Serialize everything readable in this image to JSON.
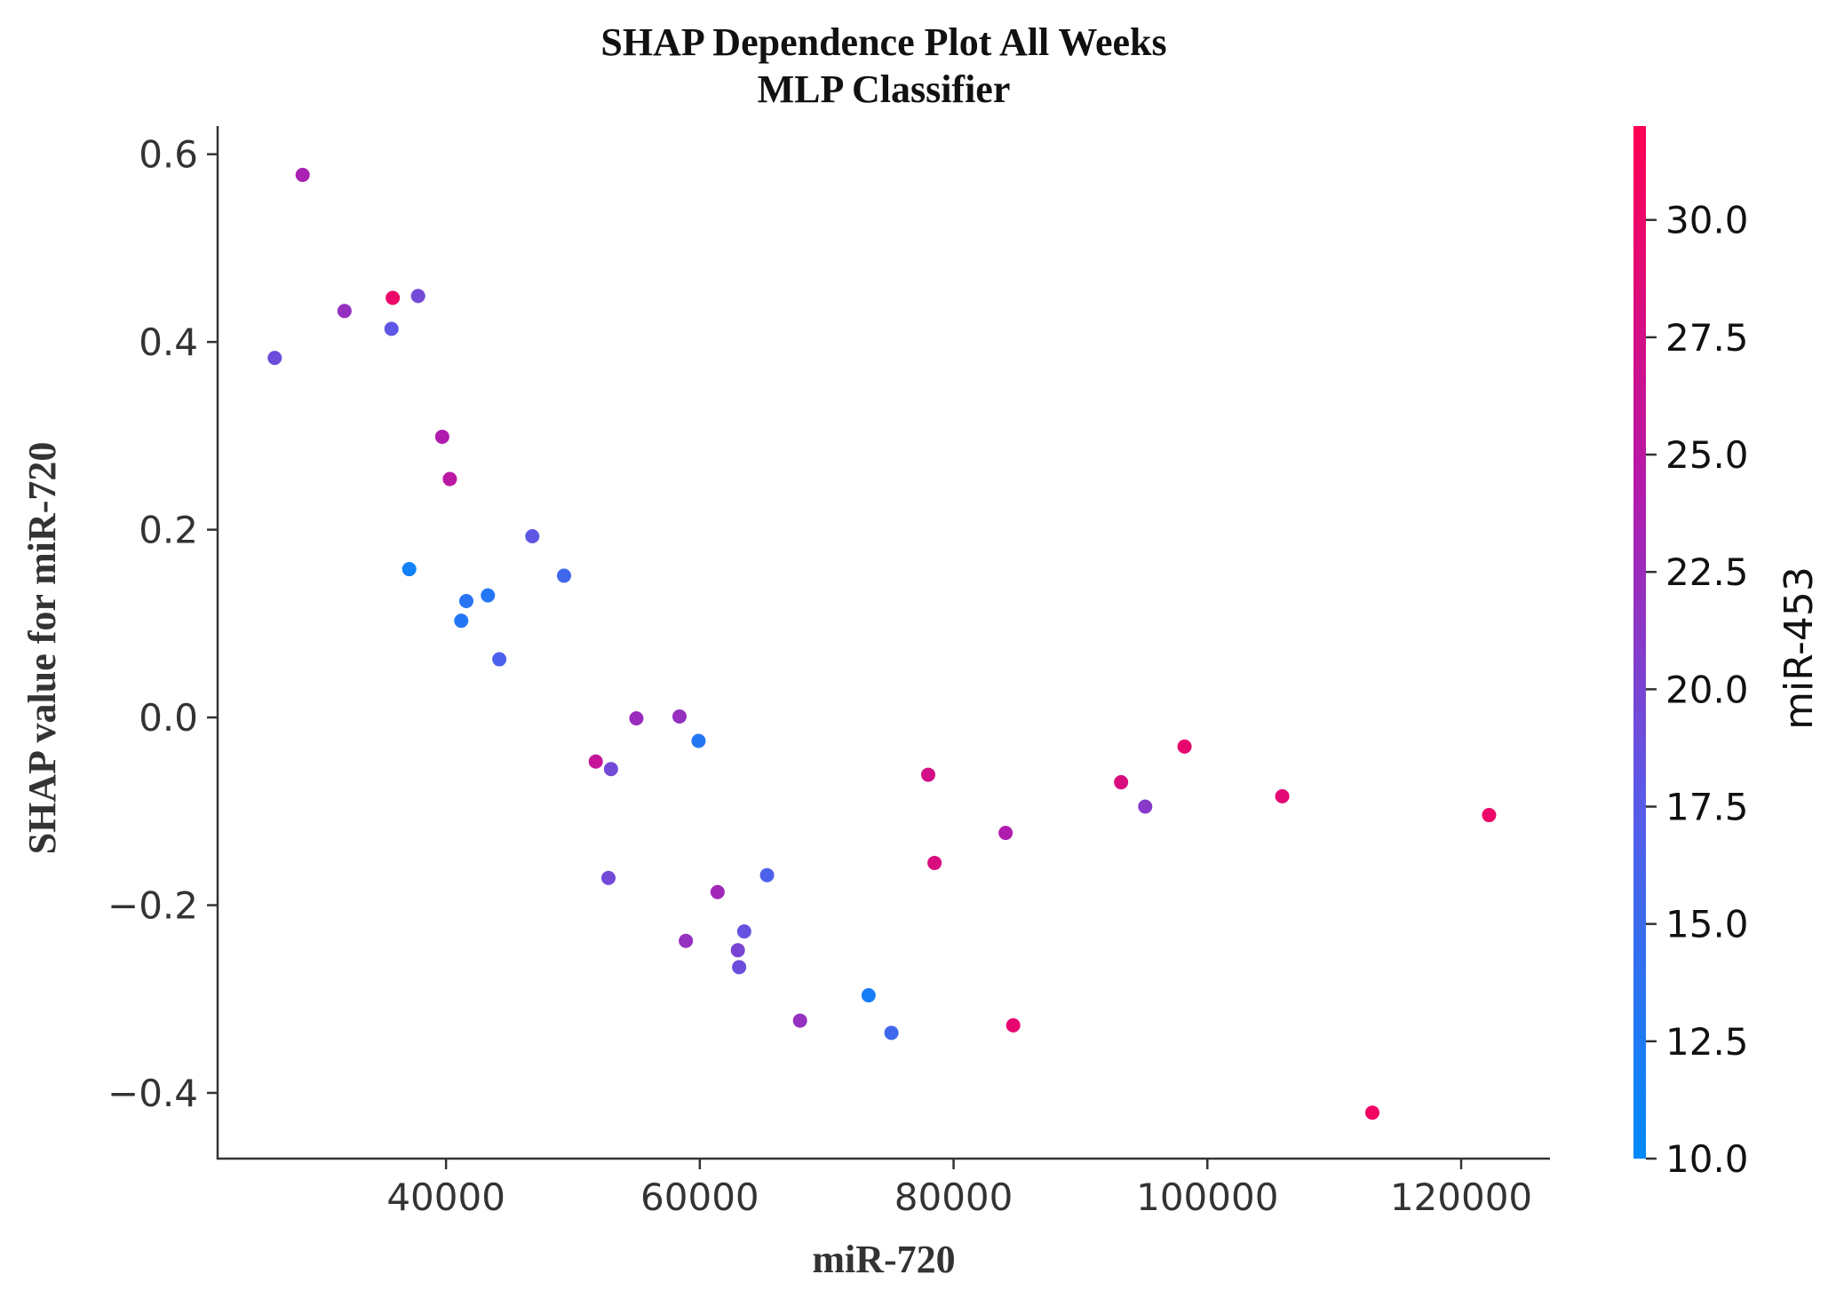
{
  "chart_data": {
    "type": "scatter",
    "title": "SHAP Dependence Plot All Weeks",
    "subtitle": "MLP Classifier",
    "xlabel": "miR-720",
    "ylabel": "SHAP value for miR-720",
    "xlim": [
      22000,
      127000
    ],
    "ylim": [
      -0.47,
      0.63
    ],
    "x_ticks": [
      40000,
      60000,
      80000,
      100000,
      120000
    ],
    "x_tick_labels": [
      "40000",
      "60000",
      "80000",
      "100000",
      "120000"
    ],
    "y_ticks": [
      0.6,
      0.4,
      0.2,
      0.0,
      -0.2,
      -0.4
    ],
    "y_tick_labels": [
      "0.6",
      "0.4",
      "0.2",
      "0.0",
      "−0.2",
      "−0.4"
    ],
    "colorbar": {
      "label": "miR-453",
      "range": [
        10.0,
        32.0
      ],
      "ticks": [
        10.0,
        12.5,
        15.0,
        17.5,
        20.0,
        22.5,
        25.0,
        27.5,
        30.0
      ],
      "tick_labels": [
        "10.0",
        "12.5",
        "15.0",
        "17.5",
        "20.0",
        "22.5",
        "25.0",
        "27.5",
        "30.0"
      ],
      "color_low": "#008afb",
      "color_high": "#ff0052"
    },
    "grid": false,
    "points": [
      {
        "x": 26500,
        "y": 0.383,
        "c": 19.0
      },
      {
        "x": 28700,
        "y": 0.578,
        "c": 23.5
      },
      {
        "x": 32000,
        "y": 0.433,
        "c": 22.0
      },
      {
        "x": 35700,
        "y": 0.414,
        "c": 18.0
      },
      {
        "x": 35800,
        "y": 0.447,
        "c": 30.0
      },
      {
        "x": 37800,
        "y": 0.449,
        "c": 19.5
      },
      {
        "x": 39700,
        "y": 0.299,
        "c": 24.0
      },
      {
        "x": 40300,
        "y": 0.254,
        "c": 25.0
      },
      {
        "x": 37100,
        "y": 0.158,
        "c": 11.5
      },
      {
        "x": 41200,
        "y": 0.103,
        "c": 13.0
      },
      {
        "x": 41600,
        "y": 0.124,
        "c": 13.5
      },
      {
        "x": 43300,
        "y": 0.13,
        "c": 13.0
      },
      {
        "x": 44200,
        "y": 0.062,
        "c": 16.5
      },
      {
        "x": 46800,
        "y": 0.193,
        "c": 18.0
      },
      {
        "x": 49300,
        "y": 0.151,
        "c": 15.5
      },
      {
        "x": 51800,
        "y": -0.047,
        "c": 26.0
      },
      {
        "x": 52800,
        "y": -0.171,
        "c": 19.5
      },
      {
        "x": 53000,
        "y": -0.055,
        "c": 19.5
      },
      {
        "x": 55000,
        "y": -0.001,
        "c": 22.5
      },
      {
        "x": 58400,
        "y": 0.001,
        "c": 22.0
      },
      {
        "x": 58900,
        "y": -0.238,
        "c": 22.0
      },
      {
        "x": 59900,
        "y": -0.025,
        "c": 13.0
      },
      {
        "x": 61400,
        "y": -0.186,
        "c": 23.0
      },
      {
        "x": 63000,
        "y": -0.248,
        "c": 20.0
      },
      {
        "x": 63100,
        "y": -0.266,
        "c": 19.0
      },
      {
        "x": 63500,
        "y": -0.228,
        "c": 18.5
      },
      {
        "x": 65300,
        "y": -0.168,
        "c": 16.5
      },
      {
        "x": 67900,
        "y": -0.323,
        "c": 22.0
      },
      {
        "x": 73300,
        "y": -0.296,
        "c": 12.0
      },
      {
        "x": 75100,
        "y": -0.336,
        "c": 15.5
      },
      {
        "x": 78000,
        "y": -0.061,
        "c": 27.5
      },
      {
        "x": 78500,
        "y": -0.155,
        "c": 28.0
      },
      {
        "x": 84100,
        "y": -0.123,
        "c": 24.0
      },
      {
        "x": 84700,
        "y": -0.328,
        "c": 29.5
      },
      {
        "x": 93200,
        "y": -0.069,
        "c": 28.0
      },
      {
        "x": 95100,
        "y": -0.095,
        "c": 21.0
      },
      {
        "x": 98200,
        "y": -0.031,
        "c": 29.5
      },
      {
        "x": 105900,
        "y": -0.084,
        "c": 29.0
      },
      {
        "x": 113000,
        "y": -0.421,
        "c": 30.5
      },
      {
        "x": 122200,
        "y": -0.104,
        "c": 30.0
      }
    ]
  }
}
